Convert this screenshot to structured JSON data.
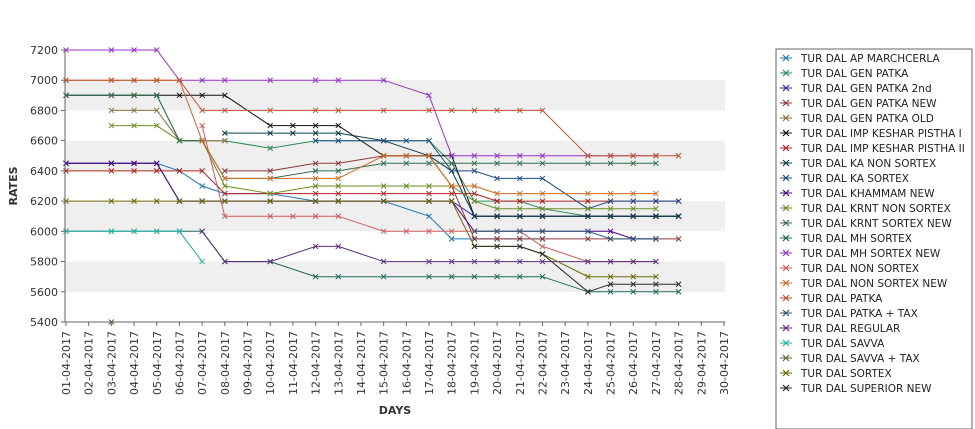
{
  "chart_data": {
    "type": "line",
    "xlabel": "DAYS",
    "ylabel": "RATES",
    "ylim": [
      5400,
      7200
    ],
    "yticks": [
      5400,
      5600,
      5800,
      6000,
      6200,
      6400,
      6600,
      6800,
      7000,
      7200
    ],
    "grid": "alternating horizontal bands",
    "legend_position": "right",
    "x": [
      "01-04-2017",
      "02-04-2017",
      "03-04-2017",
      "04-04-2017",
      "05-04-2017",
      "06-04-2017",
      "07-04-2017",
      "08-04-2017",
      "09-04-2017",
      "10-04-2017",
      "11-04-2017",
      "12-04-2017",
      "13-04-2017",
      "14-04-2017",
      "15-04-2017",
      "16-04-2017",
      "17-04-2017",
      "18-04-2017",
      "19-04-2017",
      "20-04-2017",
      "21-04-2017",
      "22-04-2017",
      "23-04-2017",
      "24-04-2017",
      "25-04-2017",
      "26-04-2017",
      "27-04-2017",
      "28-04-2017",
      "29-04-2017",
      "30-04-2017"
    ],
    "series": [
      {
        "name": "TUR DAL AP MARCHCERLA",
        "color": "#1f77b4",
        "values": [
          6450,
          null,
          6450,
          6450,
          6450,
          6400,
          6300,
          6250,
          null,
          6250,
          null,
          6200,
          6200,
          null,
          6200,
          null,
          6100,
          5950,
          5950,
          5950,
          5950,
          5950,
          null,
          null,
          null,
          null,
          null,
          null,
          null,
          null
        ]
      },
      {
        "name": "TUR DAL GEN PATKA",
        "color": "#2e8b57",
        "values": [
          6900,
          null,
          6900,
          6900,
          6900,
          6600,
          6600,
          6600,
          null,
          6550,
          null,
          6600,
          6600,
          null,
          6600,
          null,
          6600,
          6450,
          6200,
          6200,
          6200,
          6150,
          null,
          6100,
          6100,
          6100,
          6100,
          6100,
          null,
          null
        ]
      },
      {
        "name": "TUR DAL GEN PATKA 2nd",
        "color": "#3a2ca8",
        "values": [
          6450,
          null,
          6450,
          6450,
          6450,
          6200,
          6200,
          6200,
          null,
          6200,
          null,
          6200,
          6200,
          null,
          6200,
          null,
          6200,
          6200,
          6100,
          6100,
          6100,
          6100,
          null,
          6100,
          6100,
          6100,
          6100,
          6100,
          null,
          null
        ]
      },
      {
        "name": "TUR DAL GEN PATKA NEW",
        "color": "#8b3a3a",
        "values": [
          null,
          null,
          null,
          null,
          null,
          null,
          null,
          6400,
          null,
          6400,
          null,
          6450,
          6450,
          null,
          6500,
          null,
          6500,
          6300,
          5950,
          5950,
          5950,
          5950,
          null,
          5950,
          5950,
          5950,
          5950,
          5950,
          null,
          null
        ]
      },
      {
        "name": "TUR DAL GEN PATKA OLD",
        "color": "#8b6f3a",
        "values": [
          null,
          null,
          6800,
          6800,
          6800,
          6600,
          6600,
          6600,
          null,
          null,
          null,
          null,
          null,
          null,
          null,
          null,
          null,
          null,
          null,
          null,
          null,
          null,
          null,
          null,
          null,
          null,
          null,
          null,
          null,
          null
        ]
      },
      {
        "name": "TUR DAL IMP KESHAR PISTHA I",
        "color": "#111111",
        "values": [
          6900,
          null,
          6900,
          6900,
          6900,
          6900,
          6900,
          6900,
          null,
          6700,
          6700,
          6700,
          6700,
          null,
          6500,
          6500,
          6500,
          6500,
          6100,
          6100,
          6100,
          6100,
          null,
          6100,
          6100,
          6100,
          6100,
          6100,
          null,
          null
        ]
      },
      {
        "name": "TUR DAL IMP KESHAR PISTHA II",
        "color": "#b22222",
        "values": [
          6400,
          null,
          6400,
          6400,
          6400,
          6400,
          6400,
          6250,
          null,
          6250,
          null,
          6250,
          6250,
          null,
          6250,
          null,
          6250,
          6250,
          6250,
          6200,
          6200,
          6200,
          null,
          6200,
          6200,
          6200,
          6200,
          6200,
          null,
          null
        ]
      },
      {
        "name": "TUR DAL KA NON SORTEX",
        "color": "#0b3d4a",
        "values": [
          null,
          null,
          null,
          null,
          null,
          null,
          null,
          6650,
          null,
          6650,
          6650,
          6650,
          6650,
          null,
          6600,
          null,
          6500,
          6400,
          6100,
          6100,
          6100,
          6100,
          null,
          6100,
          6100,
          6100,
          6100,
          6100,
          null,
          null
        ]
      },
      {
        "name": "TUR DAL KA SORTEX",
        "color": "#1d4e89",
        "values": [
          null,
          null,
          null,
          null,
          null,
          null,
          null,
          null,
          null,
          null,
          null,
          6600,
          6600,
          null,
          6600,
          6600,
          6600,
          6400,
          6400,
          6350,
          6350,
          6350,
          null,
          6150,
          6200,
          6200,
          6200,
          6200,
          null,
          null
        ]
      },
      {
        "name": "TUR DAL KHAMMAM NEW",
        "color": "#4b0082",
        "values": [
          6450,
          null,
          6450,
          6450,
          6450,
          6200,
          6200,
          6200,
          null,
          6200,
          null,
          6200,
          6200,
          null,
          6200,
          null,
          6200,
          6200,
          6000,
          6000,
          6000,
          6000,
          null,
          6000,
          6000,
          5950,
          5950,
          null,
          null,
          null
        ]
      },
      {
        "name": "TUR DAL KRNT NON SORTEX",
        "color": "#6b8e23",
        "values": [
          null,
          null,
          6700,
          6700,
          6700,
          6600,
          6600,
          6300,
          null,
          6250,
          null,
          6300,
          6300,
          null,
          6300,
          6300,
          6300,
          6300,
          6200,
          6150,
          6150,
          6150,
          null,
          6150,
          6150,
          6150,
          6150,
          null,
          null,
          null
        ]
      },
      {
        "name": "TUR DAL KRNT SORTEX NEW",
        "color": "#2f6f4f",
        "values": [
          6900,
          null,
          6900,
          6900,
          6900,
          6600,
          6600,
          6350,
          null,
          6350,
          null,
          6400,
          6400,
          null,
          6450,
          6450,
          6450,
          6450,
          6450,
          6450,
          6450,
          6450,
          null,
          6450,
          6450,
          6450,
          6450,
          null,
          null,
          null
        ]
      },
      {
        "name": "TUR DAL MH SORTEX",
        "color": "#1a6b5a",
        "values": [
          6000,
          null,
          6000,
          6000,
          6000,
          6000,
          6000,
          5800,
          null,
          5800,
          null,
          5700,
          5700,
          null,
          5700,
          null,
          5700,
          5700,
          5700,
          5700,
          5700,
          5700,
          null,
          5600,
          5600,
          5600,
          5600,
          5600,
          null,
          null
        ]
      },
      {
        "name": "TUR DAL MH SORTEX NEW",
        "color": "#9932cc",
        "values": [
          7200,
          null,
          7200,
          7200,
          7200,
          7000,
          7000,
          7000,
          null,
          7000,
          null,
          7000,
          7000,
          null,
          7000,
          null,
          6900,
          6500,
          6500,
          6500,
          6500,
          6500,
          null,
          6500,
          6500,
          6500,
          6500,
          null,
          null,
          null
        ]
      },
      {
        "name": "TUR DAL NON SORTEX",
        "color": "#cd5c5c",
        "values": [
          null,
          null,
          null,
          null,
          null,
          null,
          6700,
          6100,
          null,
          6100,
          6100,
          6100,
          6100,
          null,
          6000,
          6000,
          6000,
          6000,
          6000,
          6000,
          6000,
          5900,
          null,
          5800,
          5800,
          5800,
          5800,
          null,
          null,
          null
        ]
      },
      {
        "name": "TUR DAL NON SORTEX NEW",
        "color": "#d2691e",
        "values": [
          7000,
          null,
          7000,
          7000,
          7000,
          7000,
          6600,
          6350,
          null,
          6350,
          null,
          6350,
          6350,
          null,
          6500,
          6500,
          6500,
          6300,
          6300,
          6250,
          6250,
          6250,
          null,
          6250,
          6250,
          6250,
          6250,
          null,
          null,
          null
        ]
      },
      {
        "name": "TUR DAL PATKA",
        "color": "#c0522a",
        "values": [
          7000,
          null,
          7000,
          7000,
          7000,
          7000,
          6800,
          6800,
          null,
          6800,
          null,
          6800,
          6800,
          null,
          6800,
          null,
          6800,
          6800,
          6800,
          6800,
          6800,
          6800,
          null,
          6500,
          6500,
          6500,
          6500,
          6500,
          null,
          null
        ]
      },
      {
        "name": "TUR DAL PATKA + TAX",
        "color": "#2a5a7a",
        "values": [
          null,
          null,
          null,
          null,
          null,
          null,
          null,
          null,
          null,
          null,
          null,
          null,
          null,
          null,
          null,
          null,
          null,
          null,
          6000,
          6000,
          6000,
          6000,
          null,
          6000,
          5950,
          5950,
          5950,
          null,
          null,
          null
        ]
      },
      {
        "name": "TUR DAL REGULAR",
        "color": "#5a2d82",
        "values": [
          null,
          null,
          null,
          null,
          null,
          null,
          6000,
          5800,
          null,
          5800,
          null,
          5900,
          5900,
          null,
          5800,
          null,
          5800,
          5800,
          5800,
          5800,
          5800,
          5800,
          null,
          5800,
          5800,
          5800,
          5800,
          null,
          null,
          null
        ]
      },
      {
        "name": "TUR DAL SAVVA",
        "color": "#20b2aa",
        "values": [
          6000,
          null,
          6000,
          6000,
          6000,
          6000,
          5800,
          null,
          null,
          null,
          null,
          null,
          null,
          null,
          null,
          null,
          null,
          null,
          null,
          null,
          null,
          null,
          null,
          null,
          null,
          null,
          null,
          null,
          null,
          null
        ]
      },
      {
        "name": "TUR DAL SAVVA + TAX",
        "color": "#556b2f",
        "values": [
          null,
          null,
          5400,
          null,
          null,
          null,
          null,
          null,
          null,
          null,
          null,
          null,
          null,
          null,
          null,
          null,
          null,
          null,
          null,
          null,
          null,
          null,
          null,
          null,
          null,
          null,
          null,
          null,
          null,
          null
        ]
      },
      {
        "name": "TUR DAL SORTEX",
        "color": "#6b6b00",
        "values": [
          6200,
          null,
          6200,
          6200,
          6200,
          6200,
          6200,
          6200,
          null,
          6200,
          null,
          6200,
          6200,
          null,
          6200,
          null,
          6200,
          6200,
          5900,
          5900,
          5900,
          5850,
          null,
          5700,
          5700,
          5700,
          5700,
          null,
          null,
          null
        ]
      },
      {
        "name": "TUR DAL SUPERIOR NEW",
        "color": "#2b2b2b",
        "values": [
          null,
          null,
          null,
          null,
          null,
          null,
          null,
          null,
          null,
          null,
          null,
          null,
          null,
          null,
          null,
          null,
          null,
          null,
          5900,
          5900,
          5900,
          5850,
          null,
          5600,
          5650,
          5650,
          5650,
          5650,
          null,
          null
        ]
      }
    ]
  }
}
